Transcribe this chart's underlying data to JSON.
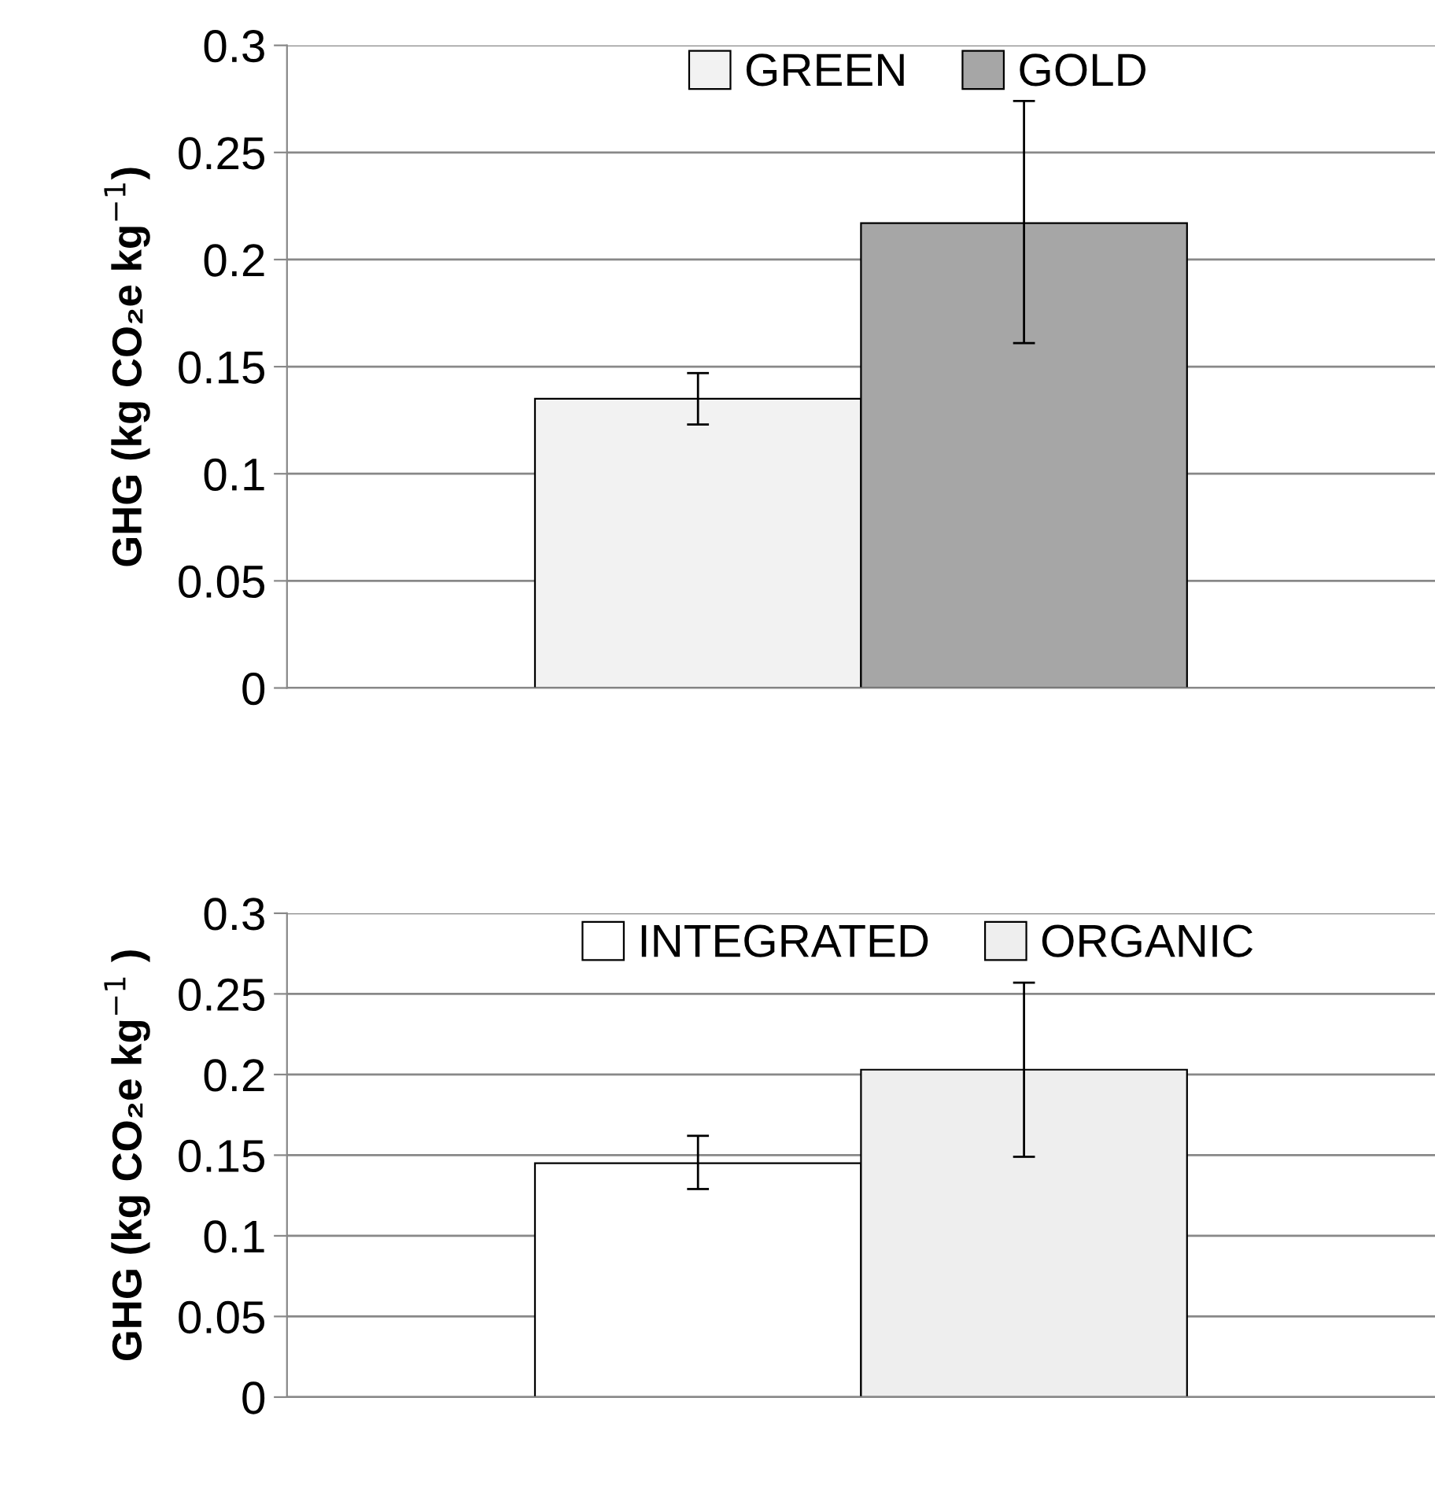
{
  "chart_data": [
    {
      "type": "bar",
      "ylabel": "GHG (kg CO₂e kg$^{−1}$)",
      "categories": [
        null
      ],
      "series": [
        {
          "name": "GREEN",
          "color": "#f2f2f2",
          "values": [
            0.135
          ],
          "errors": [
            [
              0.123,
              0.147
            ]
          ]
        },
        {
          "name": "GOLD",
          "color": "#a6a6a6",
          "values": [
            0.217
          ],
          "errors": [
            [
              0.161,
              0.274
            ]
          ]
        }
      ],
      "ylim": [
        0,
        0.3
      ],
      "yticks": [
        0,
        0.05,
        0.1,
        0.15,
        0.2,
        0.25,
        0.3
      ],
      "grid": "y",
      "legend": "top"
    },
    {
      "type": "bar",
      "ylabel": "GHG (kg CO₂e kg$^{−1}$ )",
      "categories": [
        null
      ],
      "series": [
        {
          "name": "INTEGRATED",
          "color": "#ffffff",
          "values": [
            0.145
          ],
          "errors": [
            [
              0.129,
              0.162
            ]
          ]
        },
        {
          "name": "ORGANIC",
          "color": "#eeeeee",
          "values": [
            0.203
          ],
          "errors": [
            [
              0.149,
              0.257
            ]
          ]
        }
      ],
      "ylim": [
        0,
        0.3
      ],
      "yticks": [
        0,
        0.05,
        0.1,
        0.15,
        0.2,
        0.25,
        0.3
      ],
      "grid": "y",
      "legend": "top"
    }
  ]
}
